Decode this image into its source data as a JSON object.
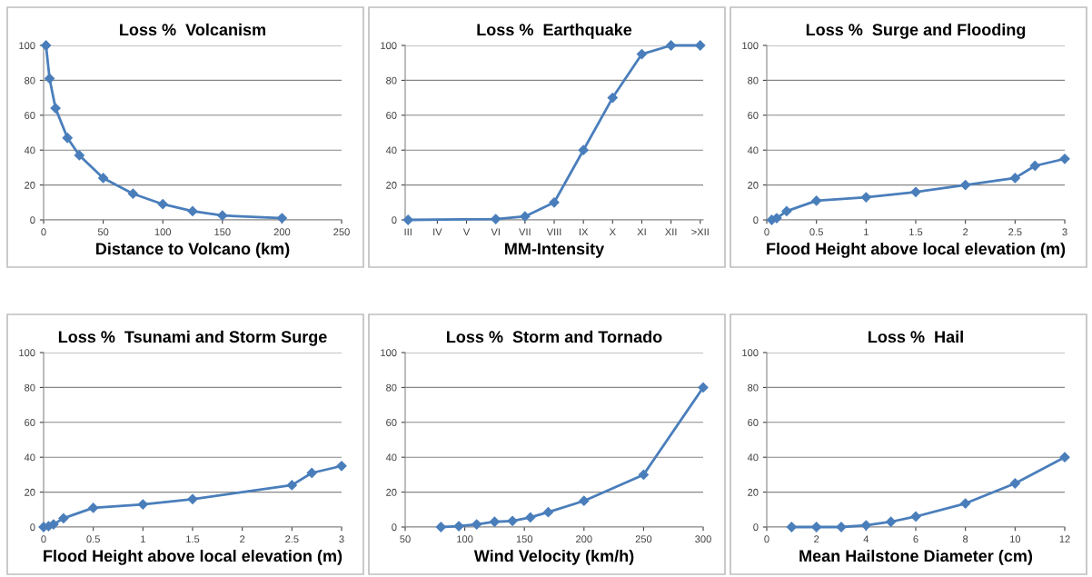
{
  "chart_data": [
    {
      "type": "line",
      "title": "Loss %  Volcanism",
      "xlabel": "Distance to Volcano (km)",
      "marker": "diamond",
      "grid": "y",
      "xlim": [
        0,
        250
      ],
      "xticks": [
        0,
        50,
        100,
        150,
        200,
        250
      ],
      "ylim": [
        0,
        100
      ],
      "yticks": [
        0,
        20,
        40,
        60,
        80,
        100
      ],
      "series": [
        {
          "color": "#4a7ebb",
          "x": [
            2,
            5,
            10,
            20,
            30,
            50,
            75,
            100,
            125,
            150,
            200
          ],
          "values": [
            100,
            81,
            64,
            47,
            37,
            24,
            15,
            9,
            5,
            2.5,
            1
          ]
        }
      ]
    },
    {
      "type": "line",
      "title": "Loss %  Earthquake",
      "xlabel": "MM-Intensity",
      "marker": "diamond",
      "grid": "y",
      "categories": [
        "III",
        "IV",
        "V",
        "VI",
        "VII",
        "VIII",
        "IX",
        "X",
        "XI",
        "XII",
        ">XII"
      ],
      "ylim": [
        0,
        100
      ],
      "yticks": [
        0,
        20,
        40,
        60,
        80,
        100
      ],
      "series": [
        {
          "color": "#4a7ebb",
          "values": [
            0,
            null,
            null,
            0.5,
            2,
            10,
            40,
            70,
            95,
            100,
            100
          ]
        }
      ]
    },
    {
      "type": "line",
      "title": "Loss %  Surge and Flooding",
      "xlabel": "Flood Height above local elevation (m)",
      "marker": "diamond",
      "grid": "y",
      "xlim": [
        0,
        3
      ],
      "xticks": [
        0,
        0.5,
        1,
        1.5,
        2,
        2.5,
        3
      ],
      "ylim": [
        0,
        100
      ],
      "yticks": [
        0,
        20,
        40,
        60,
        80,
        100
      ],
      "series": [
        {
          "color": "#4a7ebb",
          "x": [
            0.05,
            0.1,
            0.2,
            0.5,
            1,
            1.5,
            2,
            2.5,
            2.7,
            3
          ],
          "values": [
            0,
            1,
            5,
            11,
            13,
            16,
            20,
            24,
            31,
            35
          ]
        }
      ]
    },
    {
      "type": "line",
      "title": "Loss %  Tsunami and Storm Surge",
      "xlabel": "Flood Height above local elevation (m)",
      "marker": "diamond",
      "grid": "y",
      "xlim": [
        0,
        3
      ],
      "xticks": [
        0,
        0.5,
        1,
        1.5,
        2,
        2.5,
        3
      ],
      "ylim": [
        0,
        100
      ],
      "yticks": [
        0,
        20,
        40,
        60,
        80,
        100
      ],
      "series": [
        {
          "color": "#4a7ebb",
          "x": [
            0,
            0.05,
            0.1,
            0.2,
            0.5,
            1,
            1.5,
            2.5,
            2.7,
            3
          ],
          "values": [
            0,
            0.5,
            1.5,
            5,
            11,
            13,
            16,
            24,
            31,
            35
          ]
        }
      ]
    },
    {
      "type": "line",
      "title": "Loss %  Storm and Tornado",
      "xlabel": "Wind Velocity (km/h)",
      "marker": "diamond",
      "grid": "y",
      "xlim": [
        50,
        300
      ],
      "xticks": [
        50,
        100,
        150,
        200,
        250,
        300
      ],
      "ylim": [
        0,
        100
      ],
      "yticks": [
        0,
        20,
        40,
        60,
        80,
        100
      ],
      "series": [
        {
          "color": "#4a7ebb",
          "x": [
            80,
            95,
            110,
            125,
            140,
            155,
            170,
            200,
            250,
            300
          ],
          "values": [
            0,
            0.5,
            1.5,
            3,
            3.5,
            5.5,
            8.5,
            15,
            30,
            80
          ]
        }
      ]
    },
    {
      "type": "line",
      "title": "Loss %  Hail",
      "xlabel": "Mean Hailstone Diameter (cm)",
      "marker": "diamond",
      "grid": "y",
      "xlim": [
        0,
        12
      ],
      "xticks": [
        0,
        2,
        4,
        6,
        8,
        10,
        12
      ],
      "ylim": [
        0,
        100
      ],
      "yticks": [
        0,
        20,
        40,
        60,
        80,
        100
      ],
      "series": [
        {
          "color": "#4a7ebb",
          "x": [
            1,
            2,
            3,
            4,
            5,
            6,
            8,
            10,
            12
          ],
          "values": [
            0,
            0,
            0,
            1,
            3,
            6,
            13.5,
            25,
            40
          ]
        }
      ]
    }
  ]
}
